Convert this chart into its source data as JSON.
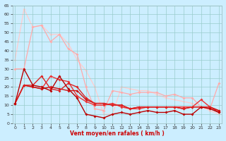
{
  "background_color": "#cceeff",
  "grid_color": "#99cccc",
  "xlim": [
    -0.3,
    23.3
  ],
  "ylim": [
    0,
    65
  ],
  "yticks": [
    0,
    5,
    10,
    15,
    20,
    25,
    30,
    35,
    40,
    45,
    50,
    55,
    60,
    65
  ],
  "xticks": [
    0,
    1,
    2,
    3,
    4,
    5,
    6,
    7,
    8,
    9,
    10,
    11,
    12,
    13,
    14,
    15,
    16,
    17,
    18,
    19,
    20,
    21,
    22,
    23
  ],
  "xlabel": "Vent moyen/en rafales ( km/h )",
  "series": [
    {
      "x": [
        0,
        1,
        2,
        3,
        4,
        5,
        6,
        7,
        8,
        9,
        10,
        11,
        12,
        13,
        14,
        15,
        16,
        17,
        18,
        19,
        20,
        21,
        22,
        23
      ],
      "y": [
        11,
        30,
        21,
        20,
        18,
        26,
        19,
        14,
        5,
        4,
        3,
        5,
        6,
        5,
        6,
        7,
        6,
        6,
        7,
        5,
        5,
        9,
        8,
        6
      ],
      "color": "#bb0000",
      "marker": "D",
      "markersize": 2.0,
      "linewidth": 1.0,
      "zorder": 5
    },
    {
      "x": [
        0,
        1,
        2,
        3,
        4,
        5,
        6,
        7,
        8,
        9,
        10,
        11,
        12,
        13,
        14,
        15,
        16,
        17,
        18,
        19,
        20,
        21,
        22,
        23
      ],
      "y": [
        11,
        21,
        20,
        19,
        20,
        19,
        18,
        18,
        13,
        11,
        11,
        10,
        10,
        8,
        9,
        9,
        9,
        9,
        9,
        8,
        9,
        9,
        9,
        7
      ],
      "color": "#cc1111",
      "marker": "D",
      "markersize": 2.0,
      "linewidth": 1.0,
      "zorder": 4
    },
    {
      "x": [
        0,
        1,
        2,
        3,
        4,
        5,
        6,
        7,
        8,
        9,
        10,
        11,
        12,
        13,
        14,
        15,
        16,
        17,
        18,
        19,
        20,
        21,
        22,
        23
      ],
      "y": [
        11,
        21,
        21,
        26,
        19,
        18,
        22,
        20,
        14,
        11,
        11,
        10,
        10,
        8,
        9,
        9,
        9,
        9,
        9,
        8,
        9,
        9,
        9,
        6
      ],
      "color": "#dd2222",
      "marker": "D",
      "markersize": 2.0,
      "linewidth": 1.0,
      "zorder": 4
    },
    {
      "x": [
        0,
        1,
        2,
        3,
        4,
        5,
        6,
        7,
        8,
        9,
        10,
        11,
        12,
        13,
        14,
        15,
        16,
        17,
        18,
        19,
        20,
        21,
        22,
        23
      ],
      "y": [
        11,
        21,
        20,
        19,
        26,
        24,
        23,
        15,
        12,
        10,
        10,
        11,
        9,
        8,
        8,
        9,
        9,
        9,
        9,
        9,
        9,
        13,
        9,
        7
      ],
      "color": "#ee3333",
      "marker": "D",
      "markersize": 2.0,
      "linewidth": 1.0,
      "zorder": 3
    },
    {
      "x": [
        0,
        1,
        2,
        3,
        4,
        5,
        6,
        7,
        8,
        9,
        10,
        11,
        12,
        13,
        14,
        15,
        16,
        17,
        18,
        19,
        20,
        21,
        22,
        23
      ],
      "y": [
        30,
        30,
        53,
        54,
        45,
        49,
        41,
        38,
        20,
        8,
        7,
        18,
        17,
        16,
        17,
        17,
        17,
        15,
        16,
        14,
        14,
        9,
        8,
        22
      ],
      "color": "#ffaaaa",
      "marker": "D",
      "markersize": 2.0,
      "linewidth": 0.9,
      "zorder": 2
    },
    {
      "x": [
        0,
        1,
        2,
        3,
        4,
        5,
        6,
        7,
        8,
        9,
        10,
        11,
        12,
        13,
        14,
        15,
        16,
        17,
        18,
        19,
        20,
        21,
        22,
        23
      ],
      "y": [
        35,
        63,
        53,
        54,
        49,
        49,
        44,
        35,
        29,
        20,
        5,
        5,
        20,
        19,
        18,
        18,
        16,
        14,
        13,
        12,
        11,
        9,
        7,
        5
      ],
      "color": "#ffcccc",
      "marker": "D",
      "markersize": 2.0,
      "linewidth": 0.9,
      "zorder": 1
    }
  ]
}
